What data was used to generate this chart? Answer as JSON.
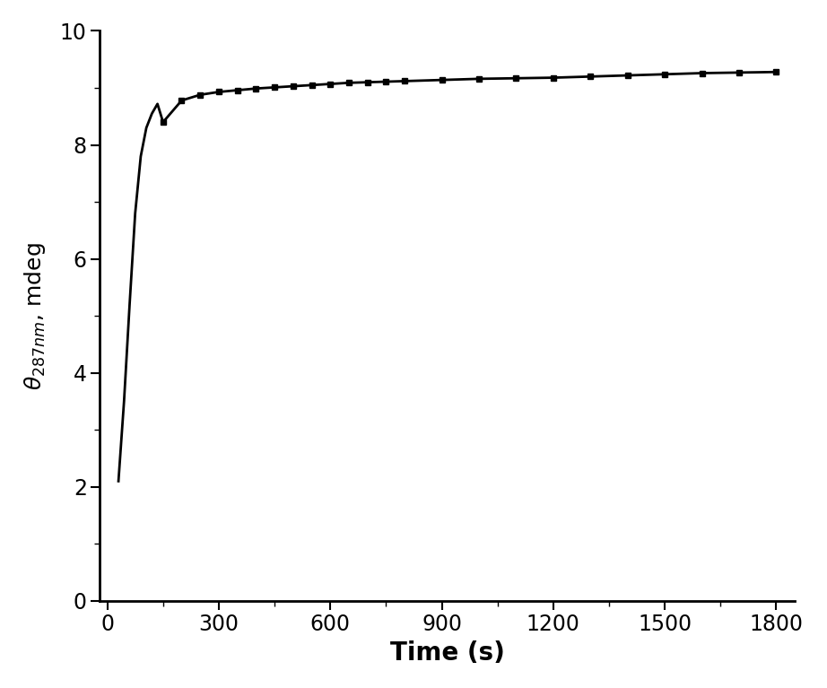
{
  "x_smooth": [
    30,
    45,
    60,
    75,
    90,
    105,
    120,
    135,
    150
  ],
  "y_smooth": [
    2.1,
    3.5,
    5.2,
    6.8,
    7.8,
    8.3,
    8.55,
    8.72,
    8.4
  ],
  "x_marked": [
    150,
    200,
    250,
    300,
    350,
    400,
    450,
    500,
    550,
    600,
    650,
    700,
    750,
    800,
    900,
    1000,
    1100,
    1200,
    1300,
    1400,
    1500,
    1600,
    1700,
    1800
  ],
  "y_marked": [
    8.4,
    8.78,
    8.88,
    8.93,
    8.96,
    8.99,
    9.01,
    9.03,
    9.05,
    9.07,
    9.09,
    9.1,
    9.11,
    9.12,
    9.14,
    9.16,
    9.17,
    9.18,
    9.2,
    9.22,
    9.24,
    9.26,
    9.27,
    9.28
  ],
  "xlabel": "Time (s)",
  "xlim": [
    -20,
    1850
  ],
  "ylim": [
    0,
    10
  ],
  "xticks": [
    0,
    300,
    600,
    900,
    1200,
    1500,
    1800
  ],
  "yticks": [
    0,
    2,
    4,
    6,
    8,
    10
  ],
  "line_color": "#000000",
  "marker": "s",
  "markersize": 5,
  "linewidth": 2.0,
  "background_color": "#ffffff",
  "xlabel_fontsize": 20,
  "ylabel_fontsize": 18,
  "tick_fontsize": 17
}
